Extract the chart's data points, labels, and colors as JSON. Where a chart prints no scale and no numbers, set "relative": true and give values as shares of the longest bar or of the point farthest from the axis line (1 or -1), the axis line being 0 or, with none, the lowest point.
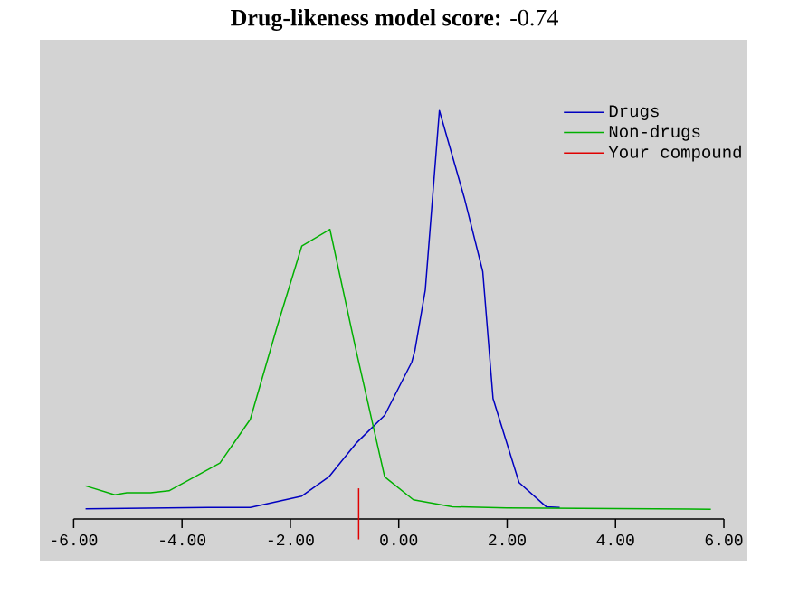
{
  "chart_data": {
    "type": "line",
    "title": "**Drug-likeness model score:** -0.74",
    "relative": true,
    "xlim": [
      -6,
      6
    ],
    "xticks": [
      {
        "value": -6,
        "label": "-6.00"
      },
      {
        "value": -4,
        "label": "-4.00"
      },
      {
        "value": -2,
        "label": "-2.00"
      },
      {
        "value": 0,
        "label": "0.00"
      },
      {
        "value": 2,
        "label": "2.00"
      },
      {
        "value": 4,
        "label": "4.00"
      },
      {
        "value": 6,
        "label": "6.00"
      }
    ],
    "series": [
      {
        "name": "Drugs",
        "color": "#0000c0",
        "x": [
          -5.78,
          -3.52,
          -2.74,
          -1.79,
          -1.29,
          -0.79,
          -0.26,
          0.24,
          0.3,
          0.49,
          0.75,
          1.21,
          1.55,
          1.74,
          2.22,
          2.72,
          2.97
        ],
        "values": [
          0.025,
          0.028,
          0.028,
          0.056,
          0.103,
          0.185,
          0.254,
          0.384,
          0.414,
          0.561,
          1,
          0.786,
          0.606,
          0.295,
          0.089,
          0.03,
          0.028
        ]
      },
      {
        "name": "Non-drugs",
        "color": "#00b000",
        "x": [
          -5.78,
          -5.24,
          -5.02,
          -4.58,
          -4.24,
          -3.3,
          -2.74,
          -2.24,
          -1.79,
          -1.27,
          -0.79,
          -0.26,
          0.27,
          0.99,
          1.99,
          5.76
        ],
        "values": [
          0.081,
          0.059,
          0.064,
          0.064,
          0.069,
          0.137,
          0.244,
          0.473,
          0.668,
          0.709,
          0.414,
          0.103,
          0.047,
          0.03,
          0.027,
          0.024
        ]
      },
      {
        "name": "Your compound",
        "color": "#e00000",
        "x": [
          -0.74,
          -0.74
        ],
        "values": [
          -0.05,
          0.075
        ]
      }
    ],
    "legend": "top right",
    "grid": false
  }
}
